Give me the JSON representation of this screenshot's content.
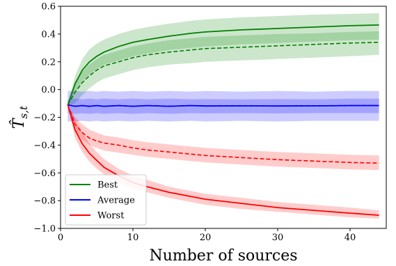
{
  "chart_data": {
    "type": "line",
    "xlabel": "Number of sources",
    "ylabel": "T̂_{s,t}",
    "ylabel_display": "T̂",
    "ylabel_sub": "s,t",
    "xlim": [
      0,
      45
    ],
    "ylim": [
      -1.0,
      0.6
    ],
    "xticks": [
      0,
      10,
      20,
      30,
      40
    ],
    "xtick_labels": [
      "0",
      "10",
      "20",
      "30",
      "40"
    ],
    "yticks": [
      -1.0,
      -0.8,
      -0.6,
      -0.4,
      -0.2,
      0.0,
      0.2,
      0.4,
      0.6
    ],
    "ytick_labels": [
      "−1.0",
      "−0.8",
      "−0.6",
      "−0.4",
      "−0.2",
      "0.0",
      "0.2",
      "0.4",
      "0.6"
    ],
    "legend_position": "bottom-left",
    "x": [
      1,
      2,
      3,
      4,
      5,
      6,
      8,
      10,
      12,
      15,
      18,
      20,
      25,
      30,
      35,
      40,
      44
    ],
    "series": [
      {
        "name": "Best",
        "color": "#008000",
        "solid": [
          -0.11,
          0.04,
          0.14,
          0.2,
          0.24,
          0.27,
          0.31,
          0.34,
          0.36,
          0.385,
          0.405,
          0.415,
          0.43,
          0.44,
          0.45,
          0.46,
          0.465
        ],
        "solid_band": [
          [
            -0.11,
            -0.11
          ],
          [
            -0.02,
            0.1
          ],
          [
            0.06,
            0.22
          ],
          [
            0.11,
            0.29
          ],
          [
            0.15,
            0.33
          ],
          [
            0.18,
            0.36
          ],
          [
            0.21,
            0.4
          ],
          [
            0.24,
            0.43
          ],
          [
            0.26,
            0.45
          ],
          [
            0.285,
            0.475
          ],
          [
            0.3,
            0.495
          ],
          [
            0.31,
            0.505
          ],
          [
            0.325,
            0.52
          ],
          [
            0.335,
            0.53
          ],
          [
            0.345,
            0.54
          ],
          [
            0.355,
            0.545
          ],
          [
            0.36,
            0.55
          ]
        ],
        "dashed": [
          -0.11,
          -0.02,
          0.05,
          0.1,
          0.14,
          0.17,
          0.2,
          0.23,
          0.25,
          0.27,
          0.285,
          0.295,
          0.305,
          0.315,
          0.325,
          0.335,
          0.34
        ],
        "dashed_band": [
          [
            -0.11,
            -0.11
          ],
          [
            -0.1,
            0.06
          ],
          [
            -0.04,
            0.13
          ],
          [
            0.01,
            0.18
          ],
          [
            0.05,
            0.22
          ],
          [
            0.08,
            0.25
          ],
          [
            0.11,
            0.28
          ],
          [
            0.14,
            0.31
          ],
          [
            0.16,
            0.33
          ],
          [
            0.18,
            0.355
          ],
          [
            0.19,
            0.37
          ],
          [
            0.2,
            0.38
          ],
          [
            0.21,
            0.39
          ],
          [
            0.22,
            0.4
          ],
          [
            0.23,
            0.405
          ],
          [
            0.24,
            0.415
          ],
          [
            0.25,
            0.42
          ]
        ]
      },
      {
        "name": "Average",
        "color": "#0000ff",
        "solid": [
          -0.11,
          -0.12,
          -0.115,
          -0.12,
          -0.115,
          -0.12,
          -0.115,
          -0.12,
          -0.115,
          -0.12,
          -0.115,
          -0.118,
          -0.117,
          -0.118,
          -0.117,
          -0.115,
          -0.115
        ],
        "solid_band": [
          [
            -0.23,
            -0.01
          ],
          [
            -0.23,
            -0.01
          ],
          [
            -0.225,
            -0.015
          ],
          [
            -0.23,
            -0.01
          ],
          [
            -0.225,
            -0.015
          ],
          [
            -0.23,
            -0.01
          ],
          [
            -0.225,
            -0.015
          ],
          [
            -0.23,
            -0.01
          ],
          [
            -0.225,
            -0.015
          ],
          [
            -0.23,
            -0.01
          ],
          [
            -0.225,
            -0.015
          ],
          [
            -0.23,
            -0.01
          ],
          [
            -0.225,
            -0.015
          ],
          [
            -0.23,
            -0.01
          ],
          [
            -0.225,
            -0.015
          ],
          [
            -0.225,
            -0.01
          ],
          [
            -0.225,
            -0.01
          ]
        ],
        "dashed": [
          -0.11,
          -0.12,
          -0.115,
          -0.12,
          -0.115,
          -0.12,
          -0.115,
          -0.12,
          -0.115,
          -0.12,
          -0.115,
          -0.118,
          -0.117,
          -0.118,
          -0.117,
          -0.115,
          -0.115
        ],
        "dashed_band": [
          [
            -0.17,
            -0.07
          ],
          [
            -0.175,
            -0.065
          ],
          [
            -0.17,
            -0.07
          ],
          [
            -0.175,
            -0.065
          ],
          [
            -0.17,
            -0.07
          ],
          [
            -0.175,
            -0.065
          ],
          [
            -0.17,
            -0.07
          ],
          [
            -0.175,
            -0.065
          ],
          [
            -0.17,
            -0.07
          ],
          [
            -0.175,
            -0.065
          ],
          [
            -0.17,
            -0.07
          ],
          [
            -0.172,
            -0.068
          ],
          [
            -0.17,
            -0.07
          ],
          [
            -0.172,
            -0.068
          ],
          [
            -0.17,
            -0.07
          ],
          [
            -0.17,
            -0.065
          ],
          [
            -0.17,
            -0.065
          ]
        ]
      },
      {
        "name": "Worst",
        "color": "#ff0000",
        "solid": [
          -0.11,
          -0.29,
          -0.39,
          -0.46,
          -0.51,
          -0.56,
          -0.62,
          -0.67,
          -0.7,
          -0.74,
          -0.77,
          -0.79,
          -0.82,
          -0.85,
          -0.87,
          -0.89,
          -0.905
        ],
        "solid_band": [
          [
            -0.11,
            -0.11
          ],
          [
            -0.35,
            -0.21
          ],
          [
            -0.45,
            -0.31
          ],
          [
            -0.52,
            -0.39
          ],
          [
            -0.57,
            -0.45
          ],
          [
            -0.61,
            -0.5
          ],
          [
            -0.67,
            -0.57
          ],
          [
            -0.71,
            -0.62
          ],
          [
            -0.74,
            -0.65
          ],
          [
            -0.78,
            -0.7
          ],
          [
            -0.81,
            -0.73
          ],
          [
            -0.83,
            -0.75
          ],
          [
            -0.86,
            -0.78
          ],
          [
            -0.88,
            -0.81
          ],
          [
            -0.9,
            -0.83
          ],
          [
            -0.92,
            -0.85
          ],
          [
            -0.93,
            -0.87
          ]
        ],
        "dashed": [
          -0.11,
          -0.25,
          -0.31,
          -0.35,
          -0.37,
          -0.385,
          -0.4,
          -0.42,
          -0.435,
          -0.45,
          -0.465,
          -0.475,
          -0.49,
          -0.505,
          -0.515,
          -0.525,
          -0.53
        ],
        "dashed_band": [
          [
            -0.11,
            -0.11
          ],
          [
            -0.3,
            -0.2
          ],
          [
            -0.36,
            -0.25
          ],
          [
            -0.4,
            -0.29
          ],
          [
            -0.42,
            -0.31
          ],
          [
            -0.44,
            -0.33
          ],
          [
            -0.455,
            -0.345
          ],
          [
            -0.47,
            -0.365
          ],
          [
            -0.485,
            -0.38
          ],
          [
            -0.5,
            -0.395
          ],
          [
            -0.515,
            -0.41
          ],
          [
            -0.525,
            -0.42
          ],
          [
            -0.54,
            -0.435
          ],
          [
            -0.555,
            -0.45
          ],
          [
            -0.565,
            -0.46
          ],
          [
            -0.575,
            -0.47
          ],
          [
            -0.58,
            -0.475
          ]
        ]
      }
    ]
  }
}
